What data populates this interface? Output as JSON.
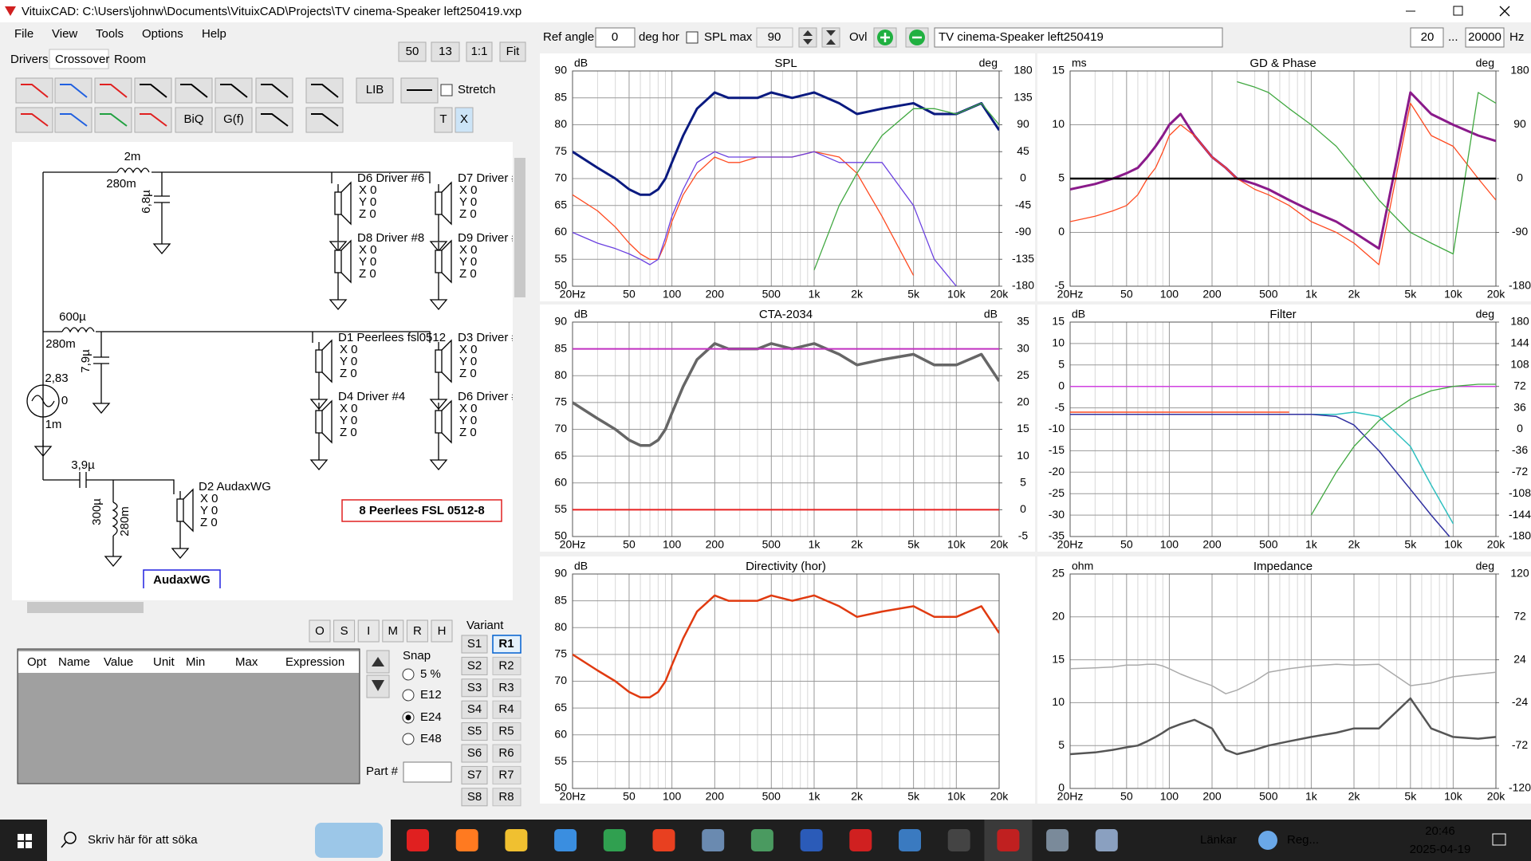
{
  "window": {
    "title": "VituixCAD: C:\\Users\\johnw\\Documents\\VituixCAD\\Projects\\TV cinema-Speaker left250419.vxp"
  },
  "menu": [
    "File",
    "View",
    "Tools",
    "Options",
    "Help"
  ],
  "tabs": [
    "Drivers",
    "Crossover",
    "Room"
  ],
  "zoom": [
    "50",
    "13",
    "1:1",
    "Fit"
  ],
  "toolbar": {
    "buttons": [
      "LIB",
      "BiQ",
      "G(f)",
      "T",
      "X"
    ],
    "stretch": "Stretch"
  },
  "schematic": {
    "components": [
      "2m",
      "280m",
      "6,8µ",
      "600µ",
      "280m",
      "7,9µ",
      "2,83",
      "0",
      "1m",
      "3,9µ",
      "300µ",
      "280m"
    ],
    "drivers": [
      {
        "name": "D6 Driver #6",
        "color": "#9a8a20"
      },
      {
        "name": "D7 Driver #",
        "color": "#e02020"
      },
      {
        "name": "D8 Driver #8",
        "color": "#9a8a20"
      },
      {
        "name": "D9 Driver #",
        "color": "#2040e0"
      },
      {
        "name": "D1 Peerlees fsl0512",
        "color": "#e02020"
      },
      {
        "name": "D3 Driver #",
        "color": "#2040e0"
      },
      {
        "name": "D4 Driver #4",
        "color": "#f0a020"
      },
      {
        "name": "D6 Driver #",
        "color": "#20d0e0"
      },
      {
        "name": "D2 AudaxWG",
        "color": "#209020"
      }
    ],
    "coords": [
      "X 0",
      "Y 0",
      "Z 0"
    ],
    "note": "8 Peerlees FSL 0512-8",
    "group": "AudaxWG"
  },
  "part_toolbar": [
    "O",
    "S",
    "I",
    "M",
    "R",
    "H"
  ],
  "table": {
    "columns": [
      "Opt",
      "Name",
      "Value",
      "Unit",
      "Min",
      "Max",
      "Expression"
    ]
  },
  "snap": {
    "label": "Snap",
    "options": [
      "5 %",
      "E12",
      "E24",
      "E48"
    ],
    "selected": 2
  },
  "part": "Part #",
  "variant": {
    "label": "Variant",
    "s": [
      "S1",
      "S2",
      "S3",
      "S4",
      "S5",
      "S6",
      "S7",
      "S8"
    ],
    "r": [
      "R1",
      "R2",
      "R3",
      "R4",
      "R5",
      "R6",
      "R7",
      "R8"
    ],
    "active": 0
  },
  "controls": {
    "ref_angle": "Ref angle",
    "ref_value": "0",
    "ref_unit": "deg hor",
    "spl_max": "SPL max",
    "spl_value": "90",
    "ovl": "Ovl",
    "name": "TV cinema-Speaker left250419",
    "f_min": "20",
    "range_sep": "...",
    "f_max": "20000",
    "hz": "Hz"
  },
  "freq_axis": {
    "scale": "log",
    "xlim": [
      20,
      20000
    ],
    "xticks": [
      {
        "value": 20,
        "label": "20Hz"
      },
      50,
      100,
      200,
      500,
      {
        "value": 1000,
        "label": "1k"
      },
      {
        "value": 2000,
        "label": "2k"
      },
      {
        "value": 5000,
        "label": "5k"
      },
      {
        "value": 10000,
        "label": "10k"
      },
      {
        "value": 20000,
        "label": "20k"
      }
    ],
    "minor": [
      30,
      40,
      60,
      70,
      80,
      90,
      300,
      400,
      600,
      700,
      800,
      900,
      3000,
      4000,
      6000,
      7000,
      8000,
      9000
    ],
    "x": [
      20,
      30,
      40,
      50,
      60,
      70,
      80,
      90,
      100,
      120,
      150,
      200,
      250,
      300,
      400,
      500,
      700,
      1000,
      1500,
      2000,
      3000,
      5000,
      7000,
      10000,
      15000,
      20000
    ]
  },
  "charts": [
    {
      "type": "line",
      "title": "SPL",
      "ylabel": "dB",
      "y2label": "deg",
      "ylim": [
        50,
        90
      ],
      "yticks": [
        50,
        55,
        60,
        65,
        70,
        75,
        80,
        85,
        90
      ],
      "y2lim": [
        -180,
        180
      ],
      "y2ticks": [
        -180,
        -135,
        -90,
        -45,
        0,
        45,
        90,
        135,
        180
      ],
      "series": [
        {
          "color": "#0a1a80",
          "values": [
            75,
            72,
            70,
            68,
            67,
            67,
            68,
            70,
            73,
            78,
            83,
            86,
            85,
            85,
            85,
            86,
            85,
            86,
            84,
            82,
            83,
            84,
            82,
            82,
            84,
            79
          ]
        },
        {
          "color": "#ff4a20",
          "values": [
            67,
            64,
            61,
            58,
            56,
            55,
            55,
            58,
            62,
            67,
            71,
            74,
            73,
            73,
            74,
            74,
            74,
            75,
            74,
            71,
            63,
            52,
            null,
            null,
            null,
            null
          ]
        },
        {
          "color": "#6a40e0",
          "values": [
            60,
            58,
            57,
            56,
            55,
            54,
            55,
            59,
            63,
            68,
            73,
            75,
            74,
            74,
            74,
            74,
            74,
            75,
            73,
            73,
            73,
            65,
            55,
            50,
            null,
            null
          ]
        },
        {
          "color": "#40a840",
          "values": [
            null,
            null,
            null,
            null,
            null,
            null,
            null,
            null,
            null,
            null,
            null,
            null,
            null,
            null,
            null,
            null,
            null,
            53,
            65,
            71,
            78,
            83,
            83,
            82,
            84,
            80
          ]
        }
      ]
    },
    {
      "type": "line",
      "title": "GD & Phase",
      "ylabel": "ms",
      "y2label": "deg",
      "ylim": [
        -5,
        15
      ],
      "yticks": [
        -5,
        0,
        5,
        10,
        15
      ],
      "y2lim": [
        -180,
        180
      ],
      "y2ticks": [
        -180,
        -90,
        0,
        90,
        180
      ],
      "series": [
        {
          "color": "#8a1a8a",
          "values": [
            4,
            4.5,
            5,
            5.5,
            6,
            7,
            8,
            9,
            10,
            11,
            9,
            7,
            6,
            5,
            4.5,
            4,
            3,
            2,
            1,
            0,
            -1.5,
            13,
            11,
            10,
            9,
            8.5
          ]
        },
        {
          "color": "#ff4a20",
          "values": [
            1,
            1.5,
            2,
            2.5,
            3.5,
            5,
            6,
            7.5,
            9,
            10,
            9,
            7,
            6,
            5,
            4,
            3.5,
            2.5,
            1,
            0,
            -1,
            -3,
            12,
            9,
            8,
            5,
            3
          ]
        },
        {
          "color": "#40a840",
          "values": [
            null,
            null,
            null,
            null,
            null,
            null,
            null,
            null,
            null,
            null,
            null,
            null,
            null,
            14,
            13.5,
            13,
            11.5,
            10,
            8,
            6,
            3,
            0,
            -1,
            -2,
            13,
            12
          ]
        },
        {
          "color": "#000000",
          "values": [
            5,
            5,
            5,
            5,
            5,
            5,
            5,
            5,
            5,
            5,
            5,
            5,
            5,
            5,
            5,
            5,
            5,
            5,
            5,
            5,
            5,
            5,
            5,
            5,
            5,
            5
          ]
        }
      ]
    },
    {
      "type": "line",
      "title": "CTA-2034",
      "ylabel": "dB",
      "y2label": "dB",
      "ylim": [
        50,
        90
      ],
      "yticks": [
        50,
        55,
        60,
        65,
        70,
        75,
        80,
        85,
        90
      ],
      "y2lim": [
        -5,
        35
      ],
      "y2ticks": [
        -5,
        0,
        5,
        10,
        15,
        20,
        25,
        30,
        35
      ],
      "series": [
        {
          "color": "#666666",
          "values": [
            75,
            72,
            70,
            68,
            67,
            67,
            68,
            70,
            73,
            78,
            83,
            86,
            85,
            85,
            85,
            86,
            85,
            86,
            84,
            82,
            83,
            84,
            82,
            82,
            84,
            79
          ]
        },
        {
          "color": "#c030c0",
          "values": [
            85,
            85,
            85,
            85,
            85,
            85,
            85,
            85,
            85,
            85,
            85,
            85,
            85,
            85,
            85,
            85,
            85,
            85,
            85,
            85,
            85,
            85,
            85,
            85,
            85,
            85
          ]
        },
        {
          "color": "#e82020",
          "values": [
            55,
            55,
            55,
            55,
            55,
            55,
            55,
            55,
            55,
            55,
            55,
            55,
            55,
            55,
            55,
            55,
            55,
            55,
            55,
            55,
            55,
            55,
            55,
            55,
            55,
            55
          ]
        }
      ]
    },
    {
      "type": "line",
      "title": "Filter",
      "ylabel": "dB",
      "y2label": "deg",
      "ylim": [
        -35,
        15
      ],
      "yticks": [
        -35,
        -30,
        -25,
        -20,
        -15,
        -10,
        -5,
        0,
        5,
        10,
        15
      ],
      "y2lim": [
        -180,
        180
      ],
      "y2ticks": [
        -180,
        -144,
        -108,
        -72,
        -36,
        0,
        36,
        72,
        108,
        144,
        180
      ],
      "series": [
        {
          "color": "#d040e0",
          "values": [
            0,
            0,
            0,
            0,
            0,
            0,
            0,
            0,
            0,
            0,
            0,
            0,
            0,
            0,
            0,
            0,
            0,
            0,
            0,
            0,
            0,
            0,
            0,
            0,
            0,
            0
          ]
        },
        {
          "color": "#ff4a20",
          "values": [
            -6,
            -6,
            -6,
            -6,
            -6,
            -6,
            -6,
            -6,
            -6,
            -6,
            -6,
            -6,
            -6,
            -6,
            -6,
            -6,
            -6,
            null,
            null,
            null,
            null,
            null,
            null,
            null,
            null,
            null
          ]
        },
        {
          "color": "#30c0c0",
          "values": [
            -6.5,
            -6.5,
            -6.5,
            -6.5,
            -6.5,
            -6.5,
            -6.5,
            -6.5,
            -6.5,
            -6.5,
            -6.5,
            -6.5,
            -6.5,
            -6.5,
            -6.5,
            -6.5,
            -6.5,
            -6.5,
            -6.5,
            -6,
            -7,
            -14,
            -23,
            -32,
            null,
            null
          ]
        },
        {
          "color": "#3030a0",
          "values": [
            -6.5,
            -6.5,
            -6.5,
            -6.5,
            -6.5,
            -6.5,
            -6.5,
            -6.5,
            -6.5,
            -6.5,
            -6.5,
            -6.5,
            -6.5,
            -6.5,
            -6.5,
            -6.5,
            -6.5,
            -6.5,
            -7,
            -9,
            -15,
            -24,
            -30,
            -36,
            null,
            null
          ]
        },
        {
          "color": "#40a840",
          "values": [
            null,
            null,
            null,
            null,
            null,
            null,
            null,
            null,
            null,
            null,
            null,
            null,
            null,
            null,
            null,
            null,
            null,
            -30,
            -20,
            -14,
            -8,
            -3,
            -1,
            0,
            0.5,
            0.5
          ]
        }
      ]
    },
    {
      "type": "line",
      "title": "Directivity (hor)",
      "ylabel": "dB",
      "ylim": [
        50,
        90
      ],
      "yticks": [
        50,
        55,
        60,
        65,
        70,
        75,
        80,
        85,
        90
      ],
      "series": [
        {
          "color": "#e03a10",
          "values": [
            75,
            72,
            70,
            68,
            67,
            67,
            68,
            70,
            73,
            78,
            83,
            86,
            85,
            85,
            85,
            86,
            85,
            86,
            84,
            82,
            83,
            84,
            82,
            82,
            84,
            79
          ]
        }
      ]
    },
    {
      "type": "line",
      "title": "Impedance",
      "ylabel": "ohm",
      "y2label": "deg",
      "ylim": [
        0,
        25
      ],
      "yticks": [
        0,
        5,
        10,
        15,
        20,
        25
      ],
      "y2lim": [
        -120,
        120
      ],
      "y2ticks": [
        -120,
        -72,
        -24,
        24,
        72,
        120
      ],
      "series": [
        {
          "color": "#555555",
          "values": [
            4,
            4.2,
            4.5,
            4.8,
            5,
            5.5,
            6,
            6.5,
            7,
            7.5,
            8,
            7,
            4.5,
            4,
            4.5,
            5,
            5.5,
            6,
            6.5,
            7,
            7,
            10.5,
            7,
            6,
            5.8,
            6
          ]
        },
        {
          "color": "#aaaaaa",
          "axis": "y2",
          "values": [
            14,
            15,
            16,
            18,
            18,
            19,
            19,
            17,
            14,
            8,
            2,
            -5,
            -14,
            -10,
            0,
            10,
            14,
            17,
            19,
            18,
            19,
            -5,
            -2,
            5,
            8,
            10
          ]
        }
      ]
    }
  ],
  "taskbar": {
    "search": "Skriv här för att söka",
    "links": "Länkar",
    "app": "Reg...",
    "time": "20:46",
    "date": "2025-04-19"
  }
}
